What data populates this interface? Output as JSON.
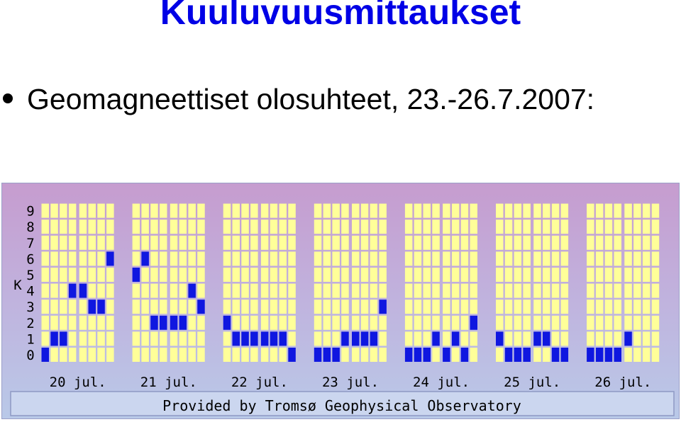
{
  "title": "Kuuluvuusmittaukset",
  "subtitle": "Geomagneettiset olosuhteet, 23.-26.7.2007:",
  "colors": {
    "title": "#0000e6",
    "bar": "#0f17e0",
    "cell": "#ffff99",
    "panel_top": "#c69ccf",
    "panel_bottom": "#b9c9e8"
  },
  "chart_data": {
    "type": "bar",
    "ylabel": "K",
    "yticks": [
      "0",
      "1",
      "2",
      "3",
      "4",
      "5",
      "6",
      "7",
      "8",
      "9"
    ],
    "ylim": [
      0,
      9
    ],
    "categories": [
      "20 jul.",
      "21 jul.",
      "22 jul.",
      "23 jul.",
      "24 jul.",
      "25 jul.",
      "26 jul."
    ],
    "series": [
      {
        "values": [
          [
            0,
            1,
            1,
            4,
            4,
            3,
            3,
            6
          ],
          [
            5,
            6,
            2,
            2,
            2,
            2,
            4,
            3
          ],
          [
            2,
            1,
            1,
            1,
            1,
            1,
            1,
            0
          ],
          [
            0,
            0,
            0,
            1,
            1,
            1,
            1,
            3
          ],
          [
            0,
            0,
            0,
            1,
            0,
            1,
            0,
            2
          ],
          [
            1,
            0,
            0,
            0,
            1,
            1,
            0,
            0
          ],
          [
            0,
            0,
            0,
            0,
            1,
            null,
            null,
            null
          ]
        ]
      }
    ],
    "footer": "Provided by Tromsø Geophysical Observatory"
  }
}
